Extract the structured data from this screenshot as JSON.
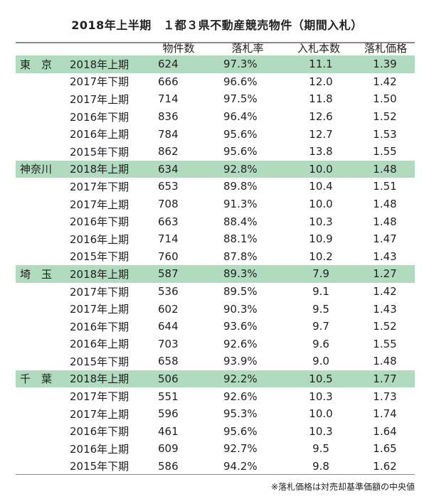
{
  "title": "2018年上半期　１都３県不動産競売物件（期間入札）",
  "columns": [
    "",
    "",
    "物件数",
    "落札率",
    "入札本数",
    "落札価格"
  ],
  "groups": [
    {
      "region": "東　京",
      "rows": [
        {
          "period": "2018年上期",
          "count": "624",
          "rate": "97.3%",
          "bids": "11.1",
          "price": "1.39"
        },
        {
          "period": "2017年下期",
          "count": "666",
          "rate": "96.6%",
          "bids": "12.0",
          "price": "1.42"
        },
        {
          "period": "2017年上期",
          "count": "714",
          "rate": "97.5%",
          "bids": "11.8",
          "price": "1.50"
        },
        {
          "period": "2016年下期",
          "count": "836",
          "rate": "96.4%",
          "bids": "12.6",
          "price": "1.52"
        },
        {
          "period": "2016年上期",
          "count": "784",
          "rate": "95.6%",
          "bids": "12.7",
          "price": "1.53"
        },
        {
          "period": "2015年下期",
          "count": "862",
          "rate": "95.6%",
          "bids": "13.8",
          "price": "1.55"
        }
      ]
    },
    {
      "region": "神奈川",
      "rows": [
        {
          "period": "2018年上期",
          "count": "634",
          "rate": "92.8%",
          "bids": "10.0",
          "price": "1.48"
        },
        {
          "period": "2017年下期",
          "count": "653",
          "rate": "89.8%",
          "bids": "10.4",
          "price": "1.51"
        },
        {
          "period": "2017年上期",
          "count": "708",
          "rate": "91.3%",
          "bids": "10.0",
          "price": "1.48"
        },
        {
          "period": "2016年下期",
          "count": "663",
          "rate": "88.4%",
          "bids": "10.3",
          "price": "1.48"
        },
        {
          "period": "2016年上期",
          "count": "714",
          "rate": "88.1%",
          "bids": "10.9",
          "price": "1.47"
        },
        {
          "period": "2015年下期",
          "count": "760",
          "rate": "87.8%",
          "bids": "10.2",
          "price": "1.43"
        }
      ]
    },
    {
      "region": "埼　玉",
      "rows": [
        {
          "period": "2018年上期",
          "count": "587",
          "rate": "89.3%",
          "bids": "7.9",
          "price": "1.27"
        },
        {
          "period": "2017年下期",
          "count": "536",
          "rate": "89.5%",
          "bids": "9.1",
          "price": "1.42"
        },
        {
          "period": "2017年上期",
          "count": "602",
          "rate": "90.3%",
          "bids": "9.5",
          "price": "1.43"
        },
        {
          "period": "2016年下期",
          "count": "644",
          "rate": "93.6%",
          "bids": "9.7",
          "price": "1.52"
        },
        {
          "period": "2016年上期",
          "count": "703",
          "rate": "92.6%",
          "bids": "9.6",
          "price": "1.55"
        },
        {
          "period": "2015年下期",
          "count": "658",
          "rate": "93.9%",
          "bids": "9.0",
          "price": "1.48"
        }
      ]
    },
    {
      "region": "千　葉",
      "rows": [
        {
          "period": "2018年上期",
          "count": "506",
          "rate": "92.2%",
          "bids": "10.5",
          "price": "1.77"
        },
        {
          "period": "2017年下期",
          "count": "551",
          "rate": "92.6%",
          "bids": "10.3",
          "price": "1.73"
        },
        {
          "period": "2017年上期",
          "count": "596",
          "rate": "95.3%",
          "bids": "10.0",
          "price": "1.74"
        },
        {
          "period": "2016年下期",
          "count": "461",
          "rate": "95.6%",
          "bids": "10.3",
          "price": "1.64"
        },
        {
          "period": "2016年上期",
          "count": "609",
          "rate": "92.7%",
          "bids": "9.5",
          "price": "1.65"
        },
        {
          "period": "2015年下期",
          "count": "586",
          "rate": "94.2%",
          "bids": "9.8",
          "price": "1.62"
        }
      ]
    }
  ],
  "footnote": "※落札価格は対売却基準価額の中央値",
  "colors": {
    "highlight_row": "#b0dbbf",
    "rule": "#8a8a8a",
    "text": "#231f20"
  }
}
